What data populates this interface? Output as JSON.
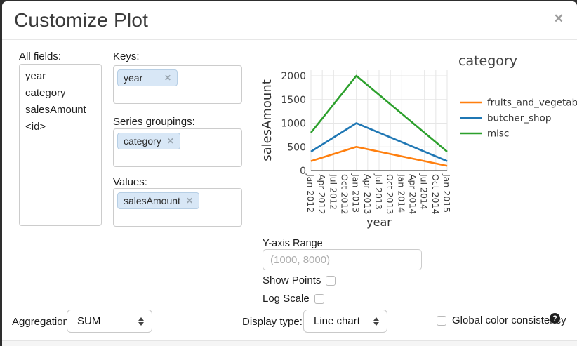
{
  "dialog": {
    "title": "Customize Plot",
    "close_label": "✕"
  },
  "fields_panel": {
    "all_fields_label": "All fields:",
    "all_fields": [
      "year",
      "category",
      "salesAmount",
      "<id>"
    ],
    "keys_label": "Keys:",
    "keys": [
      "year"
    ],
    "series_groupings_label": "Series groupings:",
    "series_groupings": [
      "category"
    ],
    "values_label": "Values:",
    "values": [
      "salesAmount"
    ],
    "remove_tag_glyph": "✕"
  },
  "options": {
    "y_axis_range_label": "Y-axis Range",
    "y_axis_range_value": "",
    "y_axis_range_placeholder": "(1000, 8000)",
    "show_points_label": "Show Points",
    "show_points_checked": false,
    "log_scale_label": "Log Scale",
    "log_scale_checked": false
  },
  "footer_controls": {
    "aggregation_label": "Aggregation:",
    "aggregation_value": "SUM",
    "display_type_label": "Display type:",
    "display_type_value": "Line chart",
    "global_color_label": "Global color consistency",
    "global_color_checked": false,
    "help_icon": "?"
  },
  "chart_data": {
    "type": "line",
    "title": "",
    "xlabel": "year",
    "ylabel": "salesAmount",
    "legend_title": "category",
    "legend_position": "right",
    "grid": true,
    "x_ticks": [
      "Jan 2012",
      "Apr 2012",
      "Jul 2012",
      "Oct 2012",
      "Jan 2013",
      "Apr 2013",
      "Jul 2013",
      "Oct 2013",
      "Jan 2014",
      "Apr 2014",
      "Jul 2014",
      "Oct 2014",
      "Jan 2015"
    ],
    "y_ticks": [
      0,
      500,
      1000,
      1500,
      2000
    ],
    "ylim": [
      0,
      2100
    ],
    "series": [
      {
        "name": "fruits_and_vegetable",
        "color": "#ff7f0e",
        "points": [
          [
            "Jan 2012",
            200
          ],
          [
            "Jan 2013",
            500
          ],
          [
            "Jan 2015",
            100
          ]
        ]
      },
      {
        "name": "butcher_shop",
        "color": "#1f77b4",
        "points": [
          [
            "Jan 2012",
            400
          ],
          [
            "Jan 2013",
            1000
          ],
          [
            "Jan 2015",
            200
          ]
        ]
      },
      {
        "name": "misc",
        "color": "#2ca02c",
        "points": [
          [
            "Jan 2012",
            800
          ],
          [
            "Jan 2013",
            2000
          ],
          [
            "Jan 2015",
            400
          ]
        ]
      }
    ],
    "colors": {
      "grid": "#e6e6e6",
      "axis": "#444444",
      "tick_text": "#3b3b3b"
    }
  }
}
